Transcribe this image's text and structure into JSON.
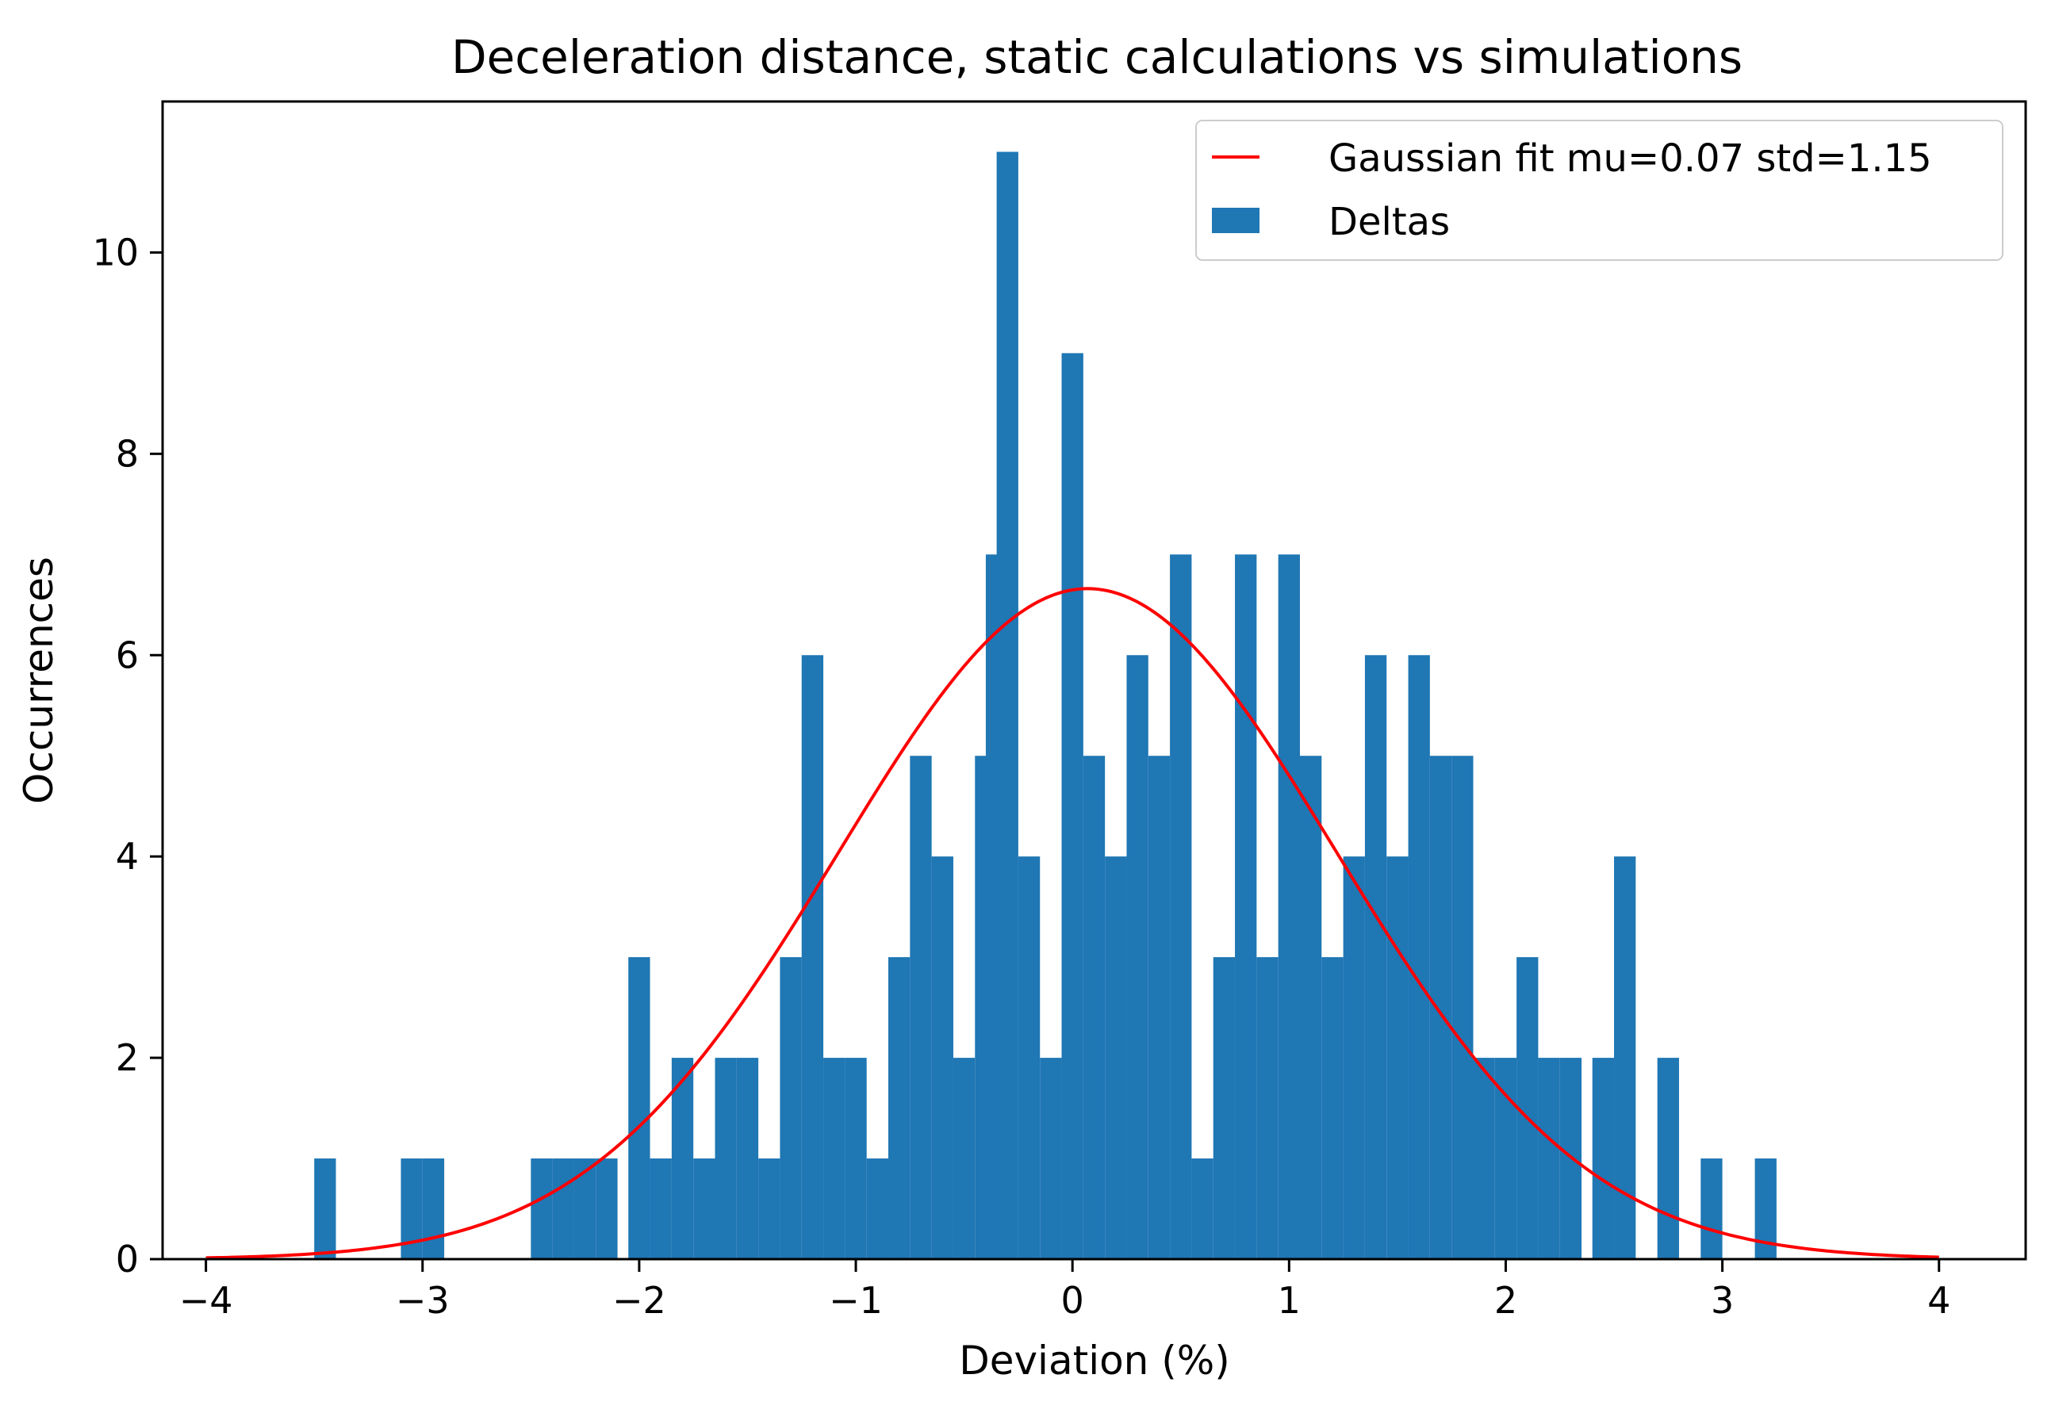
{
  "chart_data": {
    "type": "bar",
    "title": "Deceleration distance, static calculations vs simulations",
    "xlabel": "Deviation (%)",
    "ylabel": "Occurrences",
    "xlim": [
      -4.2,
      4.4
    ],
    "ylim": [
      0,
      11.5
    ],
    "grid": false,
    "legend_position": "top-right",
    "xticks": [
      -4,
      -3,
      -2,
      -1,
      0,
      1,
      2,
      3,
      4
    ],
    "xtick_labels": [
      "−4",
      "−3",
      "−2",
      "−1",
      "0",
      "1",
      "2",
      "3",
      "4"
    ],
    "yticks": [
      0,
      2,
      4,
      6,
      8,
      10
    ],
    "ytick_labels": [
      "0",
      "2",
      "4",
      "6",
      "8",
      "10"
    ],
    "bin_width": 0.1,
    "bins": [
      {
        "x": -3.45,
        "count": 1
      },
      {
        "x": -3.05,
        "count": 1
      },
      {
        "x": -2.95,
        "count": 1
      },
      {
        "x": -2.45,
        "count": 1
      },
      {
        "x": -2.35,
        "count": 1
      },
      {
        "x": -2.25,
        "count": 1
      },
      {
        "x": -2.15,
        "count": 1
      },
      {
        "x": -2.0,
        "count": 3
      },
      {
        "x": -1.9,
        "count": 1
      },
      {
        "x": -1.8,
        "count": 2
      },
      {
        "x": -1.7,
        "count": 1
      },
      {
        "x": -1.6,
        "count": 2
      },
      {
        "x": -1.5,
        "count": 2
      },
      {
        "x": -1.4,
        "count": 1
      },
      {
        "x": -1.3,
        "count": 3
      },
      {
        "x": -1.2,
        "count": 6
      },
      {
        "x": -1.1,
        "count": 2
      },
      {
        "x": -1.0,
        "count": 2
      },
      {
        "x": -0.9,
        "count": 1
      },
      {
        "x": -0.8,
        "count": 3
      },
      {
        "x": -0.7,
        "count": 5
      },
      {
        "x": -0.6,
        "count": 4
      },
      {
        "x": -0.5,
        "count": 2
      },
      {
        "x": -0.4,
        "count": 5
      },
      {
        "x": -0.35,
        "count": 7
      },
      {
        "x": -0.3,
        "count": 11
      },
      {
        "x": -0.2,
        "count": 4
      },
      {
        "x": -0.1,
        "count": 2
      },
      {
        "x": 0.0,
        "count": 9
      },
      {
        "x": 0.1,
        "count": 5
      },
      {
        "x": 0.2,
        "count": 4
      },
      {
        "x": 0.3,
        "count": 6
      },
      {
        "x": 0.4,
        "count": 5
      },
      {
        "x": 0.5,
        "count": 7
      },
      {
        "x": 0.6,
        "count": 1
      },
      {
        "x": 0.7,
        "count": 3
      },
      {
        "x": 0.8,
        "count": 7
      },
      {
        "x": 0.9,
        "count": 3
      },
      {
        "x": 1.0,
        "count": 7
      },
      {
        "x": 1.1,
        "count": 5
      },
      {
        "x": 1.2,
        "count": 3
      },
      {
        "x": 1.3,
        "count": 4
      },
      {
        "x": 1.4,
        "count": 6
      },
      {
        "x": 1.5,
        "count": 4
      },
      {
        "x": 1.6,
        "count": 6
      },
      {
        "x": 1.7,
        "count": 5
      },
      {
        "x": 1.8,
        "count": 5
      },
      {
        "x": 1.9,
        "count": 2
      },
      {
        "x": 2.0,
        "count": 2
      },
      {
        "x": 2.1,
        "count": 3
      },
      {
        "x": 2.2,
        "count": 2
      },
      {
        "x": 2.3,
        "count": 2
      },
      {
        "x": 2.45,
        "count": 2
      },
      {
        "x": 2.55,
        "count": 4
      },
      {
        "x": 2.75,
        "count": 2
      },
      {
        "x": 2.95,
        "count": 1
      },
      {
        "x": 3.2,
        "count": 1
      }
    ],
    "series": [
      {
        "name": "Gaussian fit mu=0.07 std=1.15",
        "kind": "line",
        "color": "#ff0000",
        "mu": 0.07,
        "std": 1.15,
        "x_range": [
          -4,
          4
        ]
      },
      {
        "name": "Deltas",
        "kind": "bar",
        "color": "#1f77b4"
      }
    ]
  }
}
